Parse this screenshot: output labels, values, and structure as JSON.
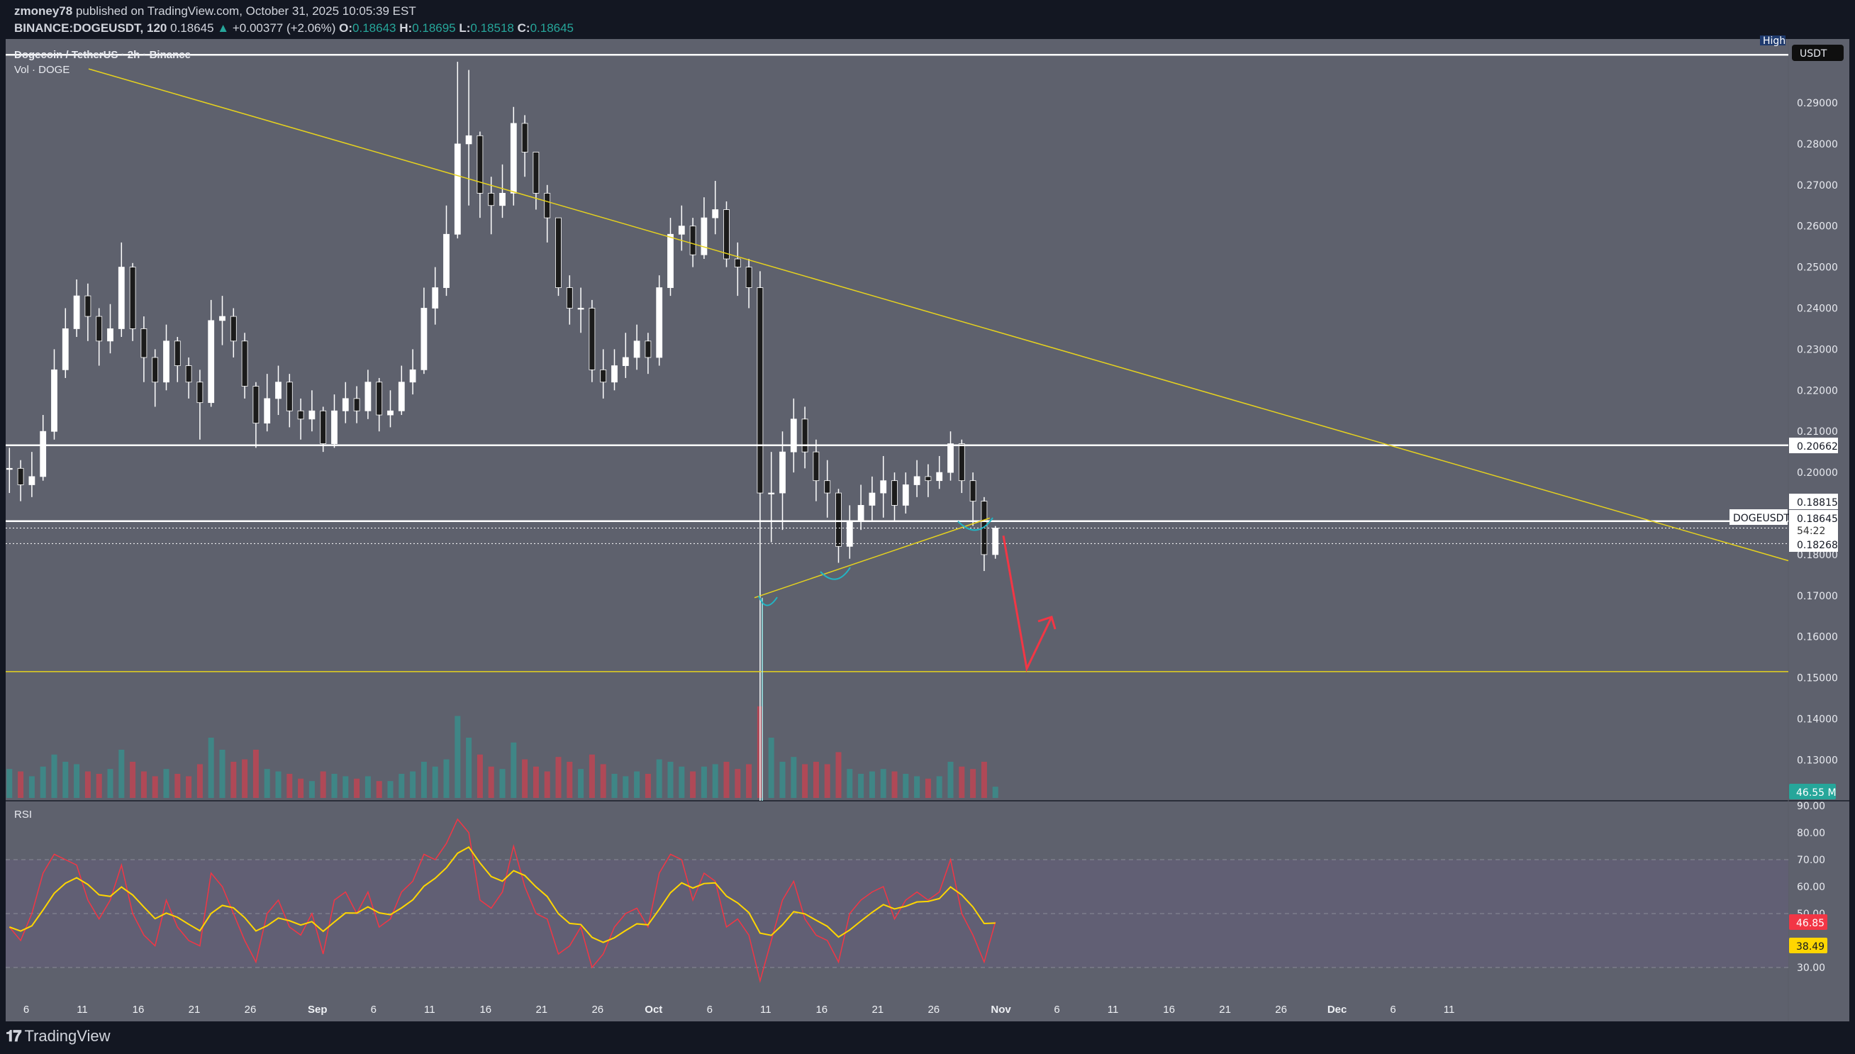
{
  "header": {
    "author": "zmoney78",
    "published": "published on TradingView.com, October 31, 2025 10:05:39 EST",
    "symbol": "BINANCE:DOGEUSDT, 120",
    "last": "0.18645",
    "change": "+0.00377 (+2.06%)",
    "o_label": "O:",
    "o": "0.18643",
    "h_label": "H:",
    "h": "0.18695",
    "l_label": "L:",
    "l": "0.18518",
    "c_label": "C:",
    "c": "0.18645",
    "up_icon": "triangle-up-icon"
  },
  "legend": {
    "title": "Dogecoin / TetherUS · 2h · Binance",
    "volume": "Vol · DOGE",
    "rsi": "RSI"
  },
  "footer": {
    "logo_mark": "TV",
    "logo_text": "TradingView"
  },
  "colors": {
    "pane": "#5e616d",
    "background": "#131722",
    "trendline": "#e6d21e",
    "up": "#ffffff",
    "down": "#1b1b1b",
    "rsi": "#f23645",
    "rsi_ma": "#ffd600",
    "volume_up": "#26a69a",
    "volume_down": "#f23645",
    "arc": "#22b5c4",
    "arrow": "#f23645"
  },
  "chart_data": [
    {
      "type": "candlestick",
      "title": "Dogecoin / TetherUS · 2h · Binance",
      "currency": "USDT",
      "start_date": "2025-08-04",
      "interval_shown": "daily approximation of 2h candles",
      "close": [
        0.201,
        0.197,
        0.199,
        0.21,
        0.225,
        0.235,
        0.243,
        0.238,
        0.232,
        0.235,
        0.25,
        0.235,
        0.228,
        0.222,
        0.232,
        0.226,
        0.222,
        0.217,
        0.237,
        0.238,
        0.232,
        0.221,
        0.212,
        0.218,
        0.222,
        0.215,
        0.213,
        0.215,
        0.207,
        0.215,
        0.218,
        0.215,
        0.222,
        0.214,
        0.215,
        0.222,
        0.225,
        0.24,
        0.245,
        0.258,
        0.28,
        0.282,
        0.268,
        0.265,
        0.268,
        0.285,
        0.278,
        0.268,
        0.262,
        0.245,
        0.24,
        0.24,
        0.225,
        0.222,
        0.226,
        0.228,
        0.232,
        0.228,
        0.245,
        0.258,
        0.26,
        0.253,
        0.262,
        0.264,
        0.252,
        0.25,
        0.245,
        0.195,
        0.195,
        0.205,
        0.213,
        0.205,
        0.198,
        0.195,
        0.182,
        0.188,
        0.192,
        0.195,
        0.198,
        0.192,
        0.197,
        0.199,
        0.198,
        0.2,
        0.207,
        0.198,
        0.193,
        0.18,
        0.18645
      ],
      "high": [
        0.206,
        0.203,
        0.205,
        0.214,
        0.23,
        0.24,
        0.247,
        0.246,
        0.24,
        0.241,
        0.256,
        0.251,
        0.238,
        0.23,
        0.236,
        0.233,
        0.228,
        0.225,
        0.242,
        0.243,
        0.24,
        0.234,
        0.222,
        0.224,
        0.226,
        0.224,
        0.218,
        0.22,
        0.216,
        0.219,
        0.222,
        0.221,
        0.225,
        0.223,
        0.22,
        0.226,
        0.23,
        0.245,
        0.25,
        0.265,
        0.3,
        0.298,
        0.283,
        0.272,
        0.275,
        0.289,
        0.287,
        0.276,
        0.27,
        0.262,
        0.248,
        0.245,
        0.242,
        0.23,
        0.23,
        0.234,
        0.236,
        0.234,
        0.248,
        0.262,
        0.265,
        0.262,
        0.267,
        0.271,
        0.266,
        0.256,
        0.252,
        0.249,
        0.205,
        0.21,
        0.218,
        0.216,
        0.208,
        0.203,
        0.196,
        0.192,
        0.197,
        0.199,
        0.204,
        0.2,
        0.2,
        0.203,
        0.202,
        0.204,
        0.21,
        0.208,
        0.2,
        0.194,
        0.18695
      ],
      "low": [
        0.195,
        0.193,
        0.194,
        0.198,
        0.208,
        0.223,
        0.233,
        0.232,
        0.226,
        0.229,
        0.233,
        0.232,
        0.222,
        0.216,
        0.22,
        0.222,
        0.218,
        0.208,
        0.216,
        0.231,
        0.228,
        0.218,
        0.206,
        0.21,
        0.214,
        0.211,
        0.208,
        0.21,
        0.205,
        0.206,
        0.212,
        0.212,
        0.213,
        0.21,
        0.211,
        0.214,
        0.219,
        0.224,
        0.236,
        0.243,
        0.257,
        0.265,
        0.262,
        0.258,
        0.262,
        0.265,
        0.272,
        0.264,
        0.256,
        0.243,
        0.236,
        0.234,
        0.222,
        0.218,
        0.22,
        0.223,
        0.225,
        0.224,
        0.226,
        0.243,
        0.254,
        0.25,
        0.252,
        0.258,
        0.25,
        0.243,
        0.24,
        0.12,
        0.183,
        0.186,
        0.2,
        0.201,
        0.193,
        0.189,
        0.178,
        0.179,
        0.186,
        0.188,
        0.189,
        0.188,
        0.19,
        0.194,
        0.194,
        0.196,
        0.198,
        0.195,
        0.187,
        0.176,
        0.179
      ],
      "volume_m": [
        120,
        110,
        90,
        130,
        180,
        150,
        140,
        110,
        100,
        120,
        200,
        150,
        110,
        90,
        120,
        100,
        90,
        140,
        250,
        200,
        150,
        160,
        200,
        120,
        110,
        100,
        80,
        70,
        110,
        100,
        90,
        80,
        90,
        70,
        70,
        100,
        110,
        150,
        130,
        160,
        340,
        250,
        180,
        130,
        120,
        230,
        160,
        130,
        110,
        170,
        150,
        120,
        180,
        140,
        100,
        90,
        110,
        100,
        160,
        150,
        130,
        110,
        130,
        140,
        150,
        120,
        140,
        380,
        250,
        150,
        170,
        140,
        150,
        140,
        190,
        120,
        100,
        110,
        120,
        110,
        100,
        90,
        80,
        90,
        150,
        130,
        120,
        150,
        46.55
      ],
      "y_ticks": [
        "0.29000",
        "0.28000",
        "0.27000",
        "0.26000",
        "0.25000",
        "0.24000",
        "0.23000",
        "0.22000",
        "0.21000",
        "0.20000",
        "0.18000",
        "0.17000",
        "0.16000",
        "0.15000",
        "0.14000",
        "0.13000"
      ],
      "x_ticks": [
        {
          "date": "2025-08-06",
          "label": "6"
        },
        {
          "date": "2025-08-11",
          "label": "11"
        },
        {
          "date": "2025-08-16",
          "label": "16"
        },
        {
          "date": "2025-08-21",
          "label": "21"
        },
        {
          "date": "2025-08-26",
          "label": "26"
        },
        {
          "date": "2025-09-01",
          "label": "Sep",
          "bold": true
        },
        {
          "date": "2025-09-06",
          "label": "6"
        },
        {
          "date": "2025-09-11",
          "label": "11"
        },
        {
          "date": "2025-09-16",
          "label": "16"
        },
        {
          "date": "2025-09-21",
          "label": "21"
        },
        {
          "date": "2025-09-26",
          "label": "26"
        },
        {
          "date": "2025-10-01",
          "label": "Oct",
          "bold": true
        },
        {
          "date": "2025-10-06",
          "label": "6"
        },
        {
          "date": "2025-10-11",
          "label": "11"
        },
        {
          "date": "2025-10-16",
          "label": "16"
        },
        {
          "date": "2025-10-21",
          "label": "21"
        },
        {
          "date": "2025-10-26",
          "label": "26"
        },
        {
          "date": "2025-11-01",
          "label": "Nov",
          "bold": true
        },
        {
          "date": "2025-11-06",
          "label": "6"
        },
        {
          "date": "2025-11-11",
          "label": "11"
        },
        {
          "date": "2025-11-16",
          "label": "16"
        },
        {
          "date": "2025-11-21",
          "label": "21"
        },
        {
          "date": "2025-11-26",
          "label": "26"
        },
        {
          "date": "2025-12-01",
          "label": "Dec",
          "bold": true
        },
        {
          "date": "2025-12-06",
          "label": "6"
        },
        {
          "date": "2025-12-11",
          "label": "11"
        }
      ],
      "price_tags": {
        "currency": "USDT",
        "high_badge": "High",
        "level_1": "0.20662",
        "level_2": "0.18815",
        "symbol": "DOGEUSDT",
        "last": "0.18645",
        "countdown": "54:22",
        "level_3": "0.18268",
        "volume": "46.55 M"
      },
      "drawings": {
        "horizontal_levels": [
          0.3017,
          0.20662,
          0.18815
        ],
        "dotted_levels": [
          0.18645,
          0.18268
        ],
        "support_level": 0.1515,
        "descending_trendline": [
          {
            "date": "2025-08-09",
            "price": 0.3003
          },
          {
            "date": "2025-11-30",
            "price": 0.2111
          }
        ],
        "ascending_trendline": [
          {
            "date": "2025-10-10",
            "price": 0.1695
          },
          {
            "date": "2025-10-31",
            "price": 0.1889
          }
        ],
        "projection_arrow": [
          {
            "date": "2025-11-01",
            "price": 0.1846
          },
          {
            "date": "2025-11-03",
            "price": 0.1522
          },
          {
            "date": "2025-11-05",
            "price": 0.1648
          }
        ]
      }
    },
    {
      "type": "line",
      "title": "RSI",
      "start_date": "2025-08-04",
      "y_ticks": [
        "90.00",
        "80.00",
        "70.00",
        "60.00",
        "50.00",
        "30.00"
      ],
      "bands": [
        70,
        50,
        30
      ],
      "rsi": [
        45,
        40,
        50,
        65,
        72,
        70,
        68,
        55,
        48,
        55,
        68,
        50,
        42,
        38,
        55,
        45,
        40,
        38,
        65,
        60,
        50,
        40,
        32,
        50,
        55,
        45,
        42,
        50,
        35,
        55,
        58,
        50,
        58,
        45,
        48,
        58,
        62,
        72,
        70,
        76,
        85,
        80,
        55,
        52,
        58,
        75,
        60,
        50,
        48,
        35,
        38,
        45,
        30,
        35,
        45,
        50,
        52,
        45,
        65,
        72,
        70,
        55,
        65,
        62,
        45,
        48,
        42,
        25,
        40,
        55,
        62,
        48,
        42,
        40,
        32,
        50,
        55,
        58,
        60,
        48,
        55,
        58,
        55,
        58,
        70,
        50,
        42,
        32,
        46.85
      ],
      "rsi_label": "46.85",
      "ma_label": "38.49"
    }
  ]
}
